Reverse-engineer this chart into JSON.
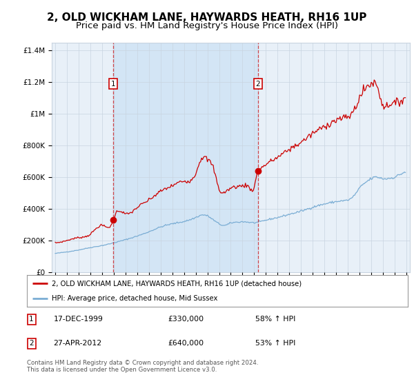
{
  "title": "2, OLD WICKHAM LANE, HAYWARDS HEATH, RH16 1UP",
  "subtitle": "Price paid vs. HM Land Registry's House Price Index (HPI)",
  "legend_line1": "2, OLD WICKHAM LANE, HAYWARDS HEATH, RH16 1UP (detached house)",
  "legend_line2": "HPI: Average price, detached house, Mid Sussex",
  "footer": "Contains HM Land Registry data © Crown copyright and database right 2024.\nThis data is licensed under the Open Government Licence v3.0.",
  "sale1_date": "17-DEC-1999",
  "sale1_price": "£330,000",
  "sale1_hpi": "58% ↑ HPI",
  "sale1_year": 1999.96,
  "sale1_value": 330000,
  "sale2_date": "27-APR-2012",
  "sale2_price": "£640,000",
  "sale2_hpi": "53% ↑ HPI",
  "sale2_year": 2012.32,
  "sale2_value": 640000,
  "ylim_max": 1450000,
  "xlim_start": 1994.7,
  "xlim_end": 2025.3,
  "plot_bg": "#e8f0f8",
  "shade_color": "#d0e4f5",
  "red_color": "#cc0000",
  "blue_color": "#7aadd4",
  "grid_color": "#c8d4e0",
  "title_fontsize": 11,
  "subtitle_fontsize": 9.5
}
